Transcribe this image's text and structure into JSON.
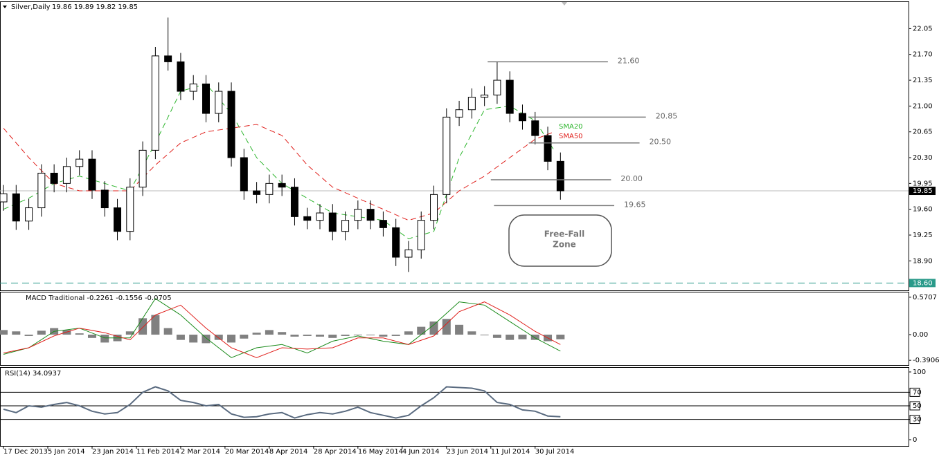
{
  "chart_data": [
    {
      "type": "candlestick",
      "title": "Silver,Daily",
      "subtitle": "19.86 19.89 19.82 19.85",
      "x": [
        0,
        4,
        8,
        12,
        16,
        20,
        24,
        28,
        32,
        36,
        40,
        44,
        48,
        52,
        56,
        60,
        64,
        68,
        72,
        76,
        80,
        84,
        88,
        92,
        96,
        100,
        104,
        108,
        112,
        116,
        120,
        124,
        128,
        132,
        136,
        140,
        144,
        148,
        152,
        156,
        160,
        164,
        168,
        172,
        176
      ],
      "open": [
        19.7,
        19.81,
        19.44,
        19.62,
        20.09,
        19.95,
        20.18,
        20.28,
        19.86,
        19.62,
        19.3,
        19.9,
        20.4,
        21.68,
        21.6,
        21.2,
        21.3,
        20.9,
        21.2,
        20.3,
        19.85,
        19.8,
        19.95,
        19.9,
        19.5,
        19.45,
        19.55,
        19.3,
        19.45,
        19.6,
        19.45,
        19.35,
        18.95,
        19.05,
        19.45,
        19.8,
        20.85,
        20.95,
        21.12,
        21.15,
        21.35,
        20.9,
        20.8,
        20.6,
        20.25
      ],
      "high": [
        19.93,
        19.93,
        19.74,
        20.21,
        20.21,
        20.3,
        20.4,
        20.4,
        19.98,
        19.74,
        20.02,
        20.52,
        21.8,
        22.2,
        21.72,
        21.42,
        21.42,
        21.32,
        21.32,
        20.42,
        19.97,
        20.07,
        20.07,
        20.02,
        19.62,
        19.67,
        19.67,
        19.57,
        19.72,
        19.72,
        19.57,
        19.47,
        19.17,
        19.57,
        19.92,
        20.97,
        21.07,
        21.24,
        21.27,
        21.6,
        21.47,
        21.02,
        20.92,
        20.72,
        20.37
      ],
      "low": [
        19.58,
        19.32,
        19.32,
        19.5,
        19.83,
        19.83,
        20.06,
        19.74,
        19.5,
        19.18,
        19.18,
        19.78,
        20.28,
        21.48,
        21.08,
        21.08,
        20.78,
        20.78,
        20.18,
        19.73,
        19.68,
        19.68,
        19.78,
        19.38,
        19.33,
        19.33,
        19.18,
        19.18,
        19.33,
        19.33,
        19.23,
        18.83,
        18.75,
        18.93,
        19.33,
        19.68,
        20.73,
        20.83,
        21.0,
        21.03,
        20.78,
        20.68,
        20.48,
        20.13,
        19.73
      ],
      "close": [
        19.81,
        19.44,
        19.62,
        20.09,
        19.95,
        20.18,
        20.28,
        19.86,
        19.62,
        19.3,
        19.9,
        20.4,
        21.68,
        21.6,
        21.2,
        21.3,
        20.9,
        21.2,
        20.3,
        19.85,
        19.8,
        19.95,
        19.9,
        19.5,
        19.45,
        19.55,
        19.3,
        19.45,
        19.6,
        19.45,
        19.35,
        18.95,
        19.05,
        19.45,
        19.8,
        20.85,
        20.95,
        21.12,
        21.15,
        21.35,
        20.9,
        20.8,
        20.6,
        20.25,
        19.85
      ],
      "series": [
        {
          "name": "SMA20",
          "color": "#2db52d",
          "x": [
            0,
            8,
            16,
            24,
            32,
            40,
            48,
            56,
            64,
            72,
            80,
            88,
            96,
            104,
            112,
            120,
            128,
            136,
            144,
            152,
            160,
            168,
            174
          ],
          "values": [
            19.6,
            19.75,
            19.95,
            20.05,
            19.95,
            19.85,
            20.5,
            21.2,
            21.3,
            20.9,
            20.3,
            19.95,
            19.75,
            19.55,
            19.5,
            19.45,
            19.2,
            19.3,
            20.3,
            20.95,
            21.0,
            20.8,
            20.4
          ]
        },
        {
          "name": "SMA50",
          "color": "#e0201c",
          "x": [
            0,
            8,
            16,
            24,
            32,
            40,
            48,
            56,
            64,
            72,
            80,
            88,
            96,
            104,
            112,
            120,
            128,
            136,
            144,
            152,
            160,
            168,
            174
          ],
          "values": [
            20.7,
            20.3,
            19.95,
            19.85,
            19.85,
            19.85,
            20.2,
            20.5,
            20.65,
            20.7,
            20.75,
            20.6,
            20.2,
            19.9,
            19.75,
            19.6,
            19.45,
            19.55,
            19.85,
            20.05,
            20.3,
            20.55,
            20.65
          ]
        }
      ],
      "levels": [
        {
          "value": 21.6,
          "label": "21.60"
        },
        {
          "value": 20.85,
          "label": "20.85"
        },
        {
          "value": 20.5,
          "label": "20.50"
        },
        {
          "value": 20,
          "label": "20.00"
        },
        {
          "value": 19.65,
          "label": "19.65"
        }
      ],
      "current_price": 19.85,
      "support": {
        "value": 18.6,
        "label": "18.60"
      },
      "annotation": [
        "Free-Fall",
        "Zone"
      ],
      "ylim": [
        18.5,
        22.41
      ],
      "yticks": [
        22.05,
        {
          "value": 21.7,
          "label": "21.70"
        },
        21.35,
        {
          "value": 21,
          "label": "21.00"
        },
        20.65,
        {
          "value": 20.3,
          "label": "20.30"
        },
        19.95,
        {
          "value": 19.6,
          "label": "19.60"
        },
        19.25,
        {
          "value": 18.9,
          "label": "18.90"
        }
      ]
    },
    {
      "type": "macd",
      "title": "MACD Traditional -0.2261 -0.1556 -0.0705",
      "x": [
        0,
        4,
        8,
        12,
        16,
        20,
        24,
        28,
        32,
        36,
        40,
        44,
        48,
        52,
        56,
        60,
        64,
        68,
        72,
        76,
        80,
        84,
        88,
        92,
        96,
        100,
        104,
        108,
        112,
        116,
        120,
        124,
        128,
        132,
        136,
        140,
        144,
        148,
        152,
        156,
        160,
        164,
        168,
        172,
        176
      ],
      "values": [
        0.07,
        0.05,
        -0.02,
        0.06,
        0.1,
        0.07,
        0.02,
        -0.05,
        -0.12,
        -0.1,
        0.05,
        0.25,
        0.3,
        0.1,
        -0.08,
        -0.12,
        -0.13,
        -0.08,
        -0.12,
        -0.06,
        0.03,
        0.07,
        0.04,
        -0.03,
        -0.02,
        -0.03,
        -0.05,
        -0.02,
        0,
        -0.01,
        -0.03,
        -0.02,
        0.05,
        0.12,
        0.2,
        0.24,
        0.15,
        0.05,
        0,
        -0.05,
        -0.08,
        -0.07,
        -0.08,
        -0.1,
        -0.07
      ],
      "color": "#808080",
      "series": [
        {
          "color": "#1a8a1a",
          "x": [
            0,
            8,
            16,
            24,
            32,
            40,
            48,
            56,
            64,
            72,
            80,
            88,
            96,
            104,
            112,
            120,
            128,
            136,
            144,
            152,
            160,
            168,
            176
          ],
          "values": [
            -0.3,
            -0.2,
            0.05,
            0.1,
            -0.05,
            -0.05,
            0.55,
            0.3,
            -0.05,
            -0.35,
            -0.2,
            -0.15,
            -0.28,
            -0.1,
            -0.02,
            -0.1,
            -0.15,
            0.15,
            0.5,
            0.45,
            0.2,
            -0.05,
            -0.25
          ]
        },
        {
          "color": "#e0201c",
          "x": [
            0,
            8,
            16,
            24,
            32,
            40,
            48,
            56,
            64,
            72,
            80,
            88,
            96,
            104,
            112,
            120,
            128,
            136,
            144,
            152,
            160,
            168,
            176
          ],
          "values": [
            -0.28,
            -0.2,
            -0.02,
            0.1,
            0.03,
            -0.08,
            0.3,
            0.45,
            0.1,
            -0.2,
            -0.35,
            -0.2,
            -0.22,
            -0.2,
            -0.05,
            -0.05,
            -0.15,
            -0.02,
            0.35,
            0.5,
            0.3,
            0.05,
            -0.15
          ]
        }
      ],
      "ylim": [
        -0.463,
        0.643
      ],
      "yticks": [
        0.5707,
        {
          "value": 0,
          "label": "0.00"
        },
        -0.3906
      ]
    },
    {
      "type": "line",
      "title": "RSI(14) 34.0937",
      "x": [
        0,
        4,
        8,
        12,
        16,
        20,
        24,
        28,
        32,
        36,
        40,
        44,
        48,
        52,
        56,
        60,
        64,
        68,
        72,
        76,
        80,
        84,
        88,
        92,
        96,
        100,
        104,
        108,
        112,
        116,
        120,
        124,
        128,
        132,
        136,
        140,
        144,
        148,
        152,
        156,
        160,
        164,
        168,
        172,
        176
      ],
      "values": [
        45,
        40,
        50,
        48,
        52,
        55,
        50,
        42,
        38,
        40,
        52,
        70,
        78,
        72,
        58,
        55,
        50,
        52,
        38,
        33,
        34,
        38,
        40,
        32,
        37,
        40,
        38,
        42,
        48,
        40,
        36,
        32,
        36,
        50,
        62,
        78,
        77,
        76,
        72,
        55,
        52,
        44,
        42,
        35,
        34
      ],
      "color": "#5a6b80",
      "levels": [
        70,
        50,
        30
      ],
      "ylim": [
        -9.2,
        106.1
      ],
      "yticks": [
        100,
        70,
        50,
        30,
        0
      ],
      "xlim": [
        -1.1,
        286
      ],
      "xticks": [
        {
          "value": 0,
          "label": "17 Dec 2013"
        },
        {
          "value": 14,
          "label": "5 Jan 2014"
        },
        {
          "value": 28,
          "label": "23 Jan 2014"
        },
        {
          "value": 42,
          "label": "11 Feb 2014"
        },
        {
          "value": 56,
          "label": "2 Mar 2014"
        },
        {
          "value": 70,
          "label": "20 Mar 2014"
        },
        {
          "value": 84,
          "label": "8 Apr 2014"
        },
        {
          "value": 98,
          "label": "28 Apr 2014"
        },
        {
          "value": 112,
          "label": "16 May 2014"
        },
        {
          "value": 126,
          "label": "4 Jun 2014"
        },
        {
          "value": 140,
          "label": "23 Jun 2014"
        },
        {
          "value": 154,
          "label": "11 Jul 2014"
        },
        {
          "value": 168,
          "label": "30 Jul 2014"
        }
      ]
    }
  ]
}
